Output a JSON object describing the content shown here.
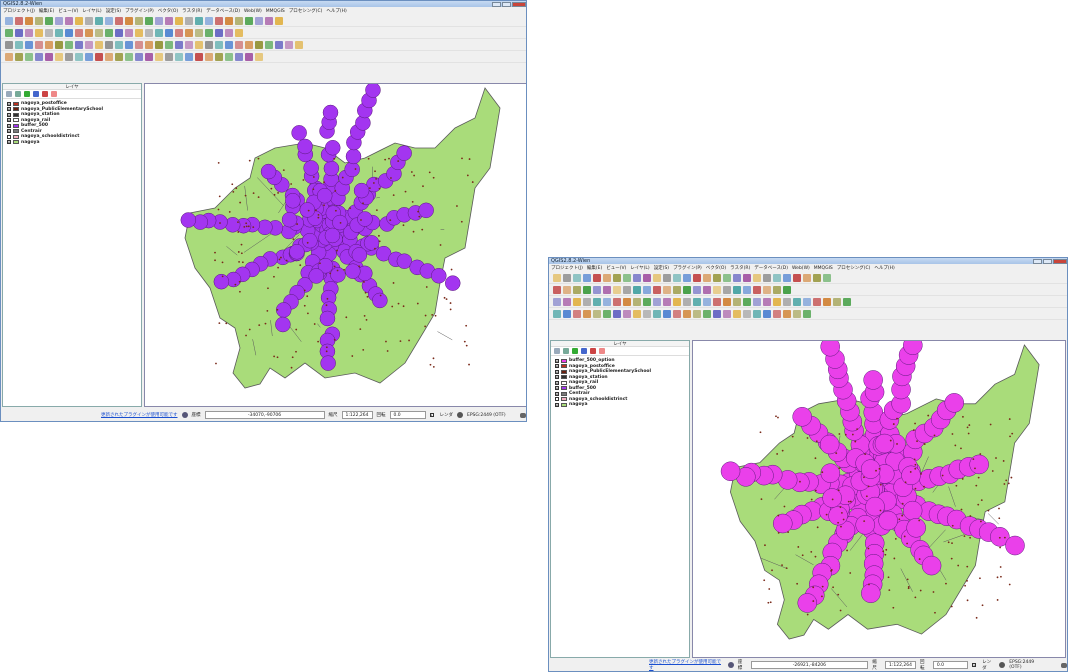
{
  "colors": {
    "land": "#a9dc7a",
    "buffer": "#a335f0",
    "buffer2": "#ea40ea",
    "border": "#5a5a5a",
    "point": "#7a2a1a"
  },
  "win1": {
    "title": "QGIS2.8.2-Wien",
    "menu": [
      "プロジェクト(J)",
      "編集(E)",
      "ビュー(V)",
      "レイヤ(L)",
      "設定(S)",
      "プラグイン(P)",
      "ベクタ(O)",
      "ラスタ(R)",
      "データベース(D)",
      "Web(W)",
      "MMQGIS",
      "プロセシング(C)",
      "ヘルプ(H)"
    ],
    "panel_title": "レイヤ",
    "layers": [
      {
        "label": "nagoya_postoffice",
        "checked": "x"
      },
      {
        "label": "nagoya_PublicElementarySchool",
        "checked": "x"
      },
      {
        "label": "nagoya_station",
        "checked": "x"
      },
      {
        "label": "nagoya_rail",
        "checked": "x"
      },
      {
        "label": "buffer_500",
        "checked": "x"
      },
      {
        "label": "Centrair",
        "checked": "x"
      },
      {
        "label": "nagoya_schooldistrinct",
        "checked": ""
      },
      {
        "label": "nagoya",
        "checked": "x"
      }
    ],
    "status": {
      "plugin_notice": "更新されたプラグインが使用可能です",
      "coord_label": "座標",
      "coord": "-34070,-90706",
      "scale_label": "縮尺",
      "scale": "1:122,264",
      "rotate_label": "回転",
      "rotate": "0.0",
      "render_label": "レンダ",
      "crs": "EPSG:2449 (OTF)"
    }
  },
  "win2": {
    "title": "QGIS2.8.2-Wien",
    "menu": [
      "プロジェクト(J)",
      "編集(E)",
      "ビュー(V)",
      "レイヤ(L)",
      "設定(S)",
      "プラグイン(P)",
      "ベクタ(O)",
      "ラスタ(R)",
      "データベース(D)",
      "Web(W)",
      "MMQGIS",
      "プロセシング(C)",
      "ヘルプ(H)"
    ],
    "panel_title": "レイヤ",
    "layers": [
      {
        "label": "buffer_500_option",
        "checked": "x"
      },
      {
        "label": "nagoya_postoffice",
        "checked": "x"
      },
      {
        "label": "nagoya_PublicElementarySchool",
        "checked": "x"
      },
      {
        "label": "nagoya_station",
        "checked": "x"
      },
      {
        "label": "nagoya_rail",
        "checked": "x"
      },
      {
        "label": "buffer_500",
        "checked": "x"
      },
      {
        "label": "Centrair",
        "checked": "x"
      },
      {
        "label": "nagoya_schooldistrinct",
        "checked": ""
      },
      {
        "label": "nagoya",
        "checked": "x"
      }
    ],
    "status": {
      "plugin_notice": "更新されたプラグインが使用可能です",
      "coord_label": "座標",
      "coord": "-26921,-84206",
      "scale_label": "縮尺",
      "scale": "1:122,264",
      "rotate_label": "回転",
      "rotate": "0.0",
      "render_label": "レンダ",
      "crs": "EPSG:2449 (OTF)"
    }
  }
}
